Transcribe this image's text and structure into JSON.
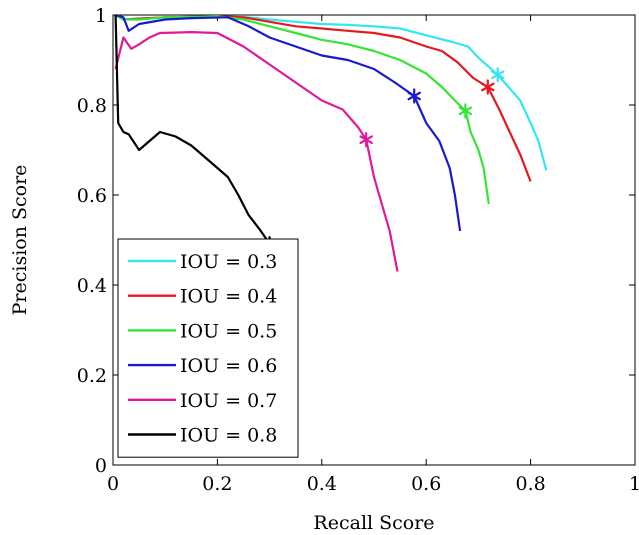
{
  "chart_data": {
    "type": "line",
    "xlabel": "Recall Score",
    "ylabel": "Precision Score",
    "xlim": [
      0,
      1
    ],
    "ylim": [
      0,
      1
    ],
    "x_ticks": [
      0,
      0.2,
      0.4,
      0.6,
      0.8,
      1
    ],
    "x_tick_labels": [
      "0",
      "0.2",
      "0.4",
      "0.6",
      "0.8",
      "1"
    ],
    "y_ticks": [
      0,
      0.2,
      0.4,
      0.6,
      0.8,
      1
    ],
    "y_tick_labels": [
      "0",
      "0.2",
      "0.4",
      "0.6",
      "0.8",
      "1"
    ],
    "grid": false,
    "legend_position": "bottom-left",
    "series": [
      {
        "name": "IOU = 0.3",
        "color": "#33e6f2",
        "marker_point": [
          0.737,
          0.867
        ],
        "points": [
          [
            0.005,
            1.0
          ],
          [
            0.02,
            0.99
          ],
          [
            0.05,
            0.992
          ],
          [
            0.1,
            0.995
          ],
          [
            0.2,
            0.997
          ],
          [
            0.26,
            0.995
          ],
          [
            0.3,
            0.99
          ],
          [
            0.35,
            0.985
          ],
          [
            0.4,
            0.98
          ],
          [
            0.45,
            0.978
          ],
          [
            0.5,
            0.975
          ],
          [
            0.55,
            0.97
          ],
          [
            0.6,
            0.955
          ],
          [
            0.65,
            0.94
          ],
          [
            0.68,
            0.93
          ],
          [
            0.7,
            0.905
          ],
          [
            0.72,
            0.885
          ],
          [
            0.737,
            0.867
          ],
          [
            0.75,
            0.85
          ],
          [
            0.78,
            0.81
          ],
          [
            0.8,
            0.76
          ],
          [
            0.815,
            0.72
          ],
          [
            0.83,
            0.655
          ]
        ]
      },
      {
        "name": "IOU = 0.4",
        "color": "#e5191f",
        "marker_point": [
          0.718,
          0.84
        ],
        "points": [
          [
            0.005,
            1.0
          ],
          [
            0.02,
            0.99
          ],
          [
            0.05,
            0.992
          ],
          [
            0.1,
            0.995
          ],
          [
            0.2,
            0.997
          ],
          [
            0.25,
            0.995
          ],
          [
            0.3,
            0.985
          ],
          [
            0.35,
            0.975
          ],
          [
            0.4,
            0.97
          ],
          [
            0.45,
            0.965
          ],
          [
            0.5,
            0.96
          ],
          [
            0.55,
            0.95
          ],
          [
            0.6,
            0.93
          ],
          [
            0.63,
            0.92
          ],
          [
            0.66,
            0.895
          ],
          [
            0.69,
            0.86
          ],
          [
            0.718,
            0.84
          ],
          [
            0.74,
            0.79
          ],
          [
            0.76,
            0.74
          ],
          [
            0.78,
            0.69
          ],
          [
            0.8,
            0.63
          ]
        ]
      },
      {
        "name": "IOU = 0.5",
        "color": "#33e633",
        "marker_point": [
          0.675,
          0.787
        ],
        "points": [
          [
            0.005,
            1.0
          ],
          [
            0.02,
            0.99
          ],
          [
            0.05,
            0.99
          ],
          [
            0.1,
            0.995
          ],
          [
            0.2,
            0.997
          ],
          [
            0.25,
            0.99
          ],
          [
            0.3,
            0.975
          ],
          [
            0.35,
            0.96
          ],
          [
            0.4,
            0.945
          ],
          [
            0.45,
            0.935
          ],
          [
            0.5,
            0.92
          ],
          [
            0.55,
            0.9
          ],
          [
            0.6,
            0.87
          ],
          [
            0.63,
            0.84
          ],
          [
            0.655,
            0.81
          ],
          [
            0.675,
            0.787
          ],
          [
            0.685,
            0.74
          ],
          [
            0.7,
            0.7
          ],
          [
            0.71,
            0.66
          ],
          [
            0.72,
            0.58
          ]
        ]
      },
      {
        "name": "IOU = 0.6",
        "color": "#1919d1",
        "marker_point": [
          0.577,
          0.82
        ],
        "points": [
          [
            0.005,
            1.0
          ],
          [
            0.02,
            0.995
          ],
          [
            0.03,
            0.965
          ],
          [
            0.05,
            0.98
          ],
          [
            0.1,
            0.99
          ],
          [
            0.15,
            0.993
          ],
          [
            0.22,
            0.995
          ],
          [
            0.26,
            0.975
          ],
          [
            0.3,
            0.95
          ],
          [
            0.35,
            0.93
          ],
          [
            0.4,
            0.91
          ],
          [
            0.45,
            0.9
          ],
          [
            0.5,
            0.88
          ],
          [
            0.54,
            0.85
          ],
          [
            0.577,
            0.82
          ],
          [
            0.6,
            0.76
          ],
          [
            0.625,
            0.72
          ],
          [
            0.645,
            0.66
          ],
          [
            0.655,
            0.6
          ],
          [
            0.665,
            0.52
          ]
        ]
      },
      {
        "name": "IOU = 0.7",
        "color": "#e0199a",
        "marker_point": [
          0.485,
          0.723
        ],
        "points": [
          [
            0.005,
            0.88
          ],
          [
            0.02,
            0.95
          ],
          [
            0.035,
            0.925
          ],
          [
            0.05,
            0.935
          ],
          [
            0.07,
            0.95
          ],
          [
            0.09,
            0.96
          ],
          [
            0.15,
            0.962
          ],
          [
            0.2,
            0.96
          ],
          [
            0.25,
            0.93
          ],
          [
            0.3,
            0.89
          ],
          [
            0.35,
            0.85
          ],
          [
            0.4,
            0.81
          ],
          [
            0.44,
            0.79
          ],
          [
            0.47,
            0.75
          ],
          [
            0.485,
            0.723
          ],
          [
            0.5,
            0.64
          ],
          [
            0.515,
            0.58
          ],
          [
            0.53,
            0.52
          ],
          [
            0.545,
            0.43
          ]
        ]
      },
      {
        "name": "IOU = 0.8",
        "color": "#000000",
        "marker_point": [
          0.3,
          0.492
        ],
        "points": [
          [
            0.005,
            1.0
          ],
          [
            0.01,
            0.76
          ],
          [
            0.02,
            0.74
          ],
          [
            0.03,
            0.735
          ],
          [
            0.05,
            0.7
          ],
          [
            0.07,
            0.72
          ],
          [
            0.09,
            0.74
          ],
          [
            0.12,
            0.73
          ],
          [
            0.15,
            0.71
          ],
          [
            0.18,
            0.68
          ],
          [
            0.22,
            0.64
          ],
          [
            0.24,
            0.6
          ],
          [
            0.26,
            0.555
          ],
          [
            0.28,
            0.525
          ],
          [
            0.3,
            0.492
          ]
        ]
      }
    ]
  }
}
